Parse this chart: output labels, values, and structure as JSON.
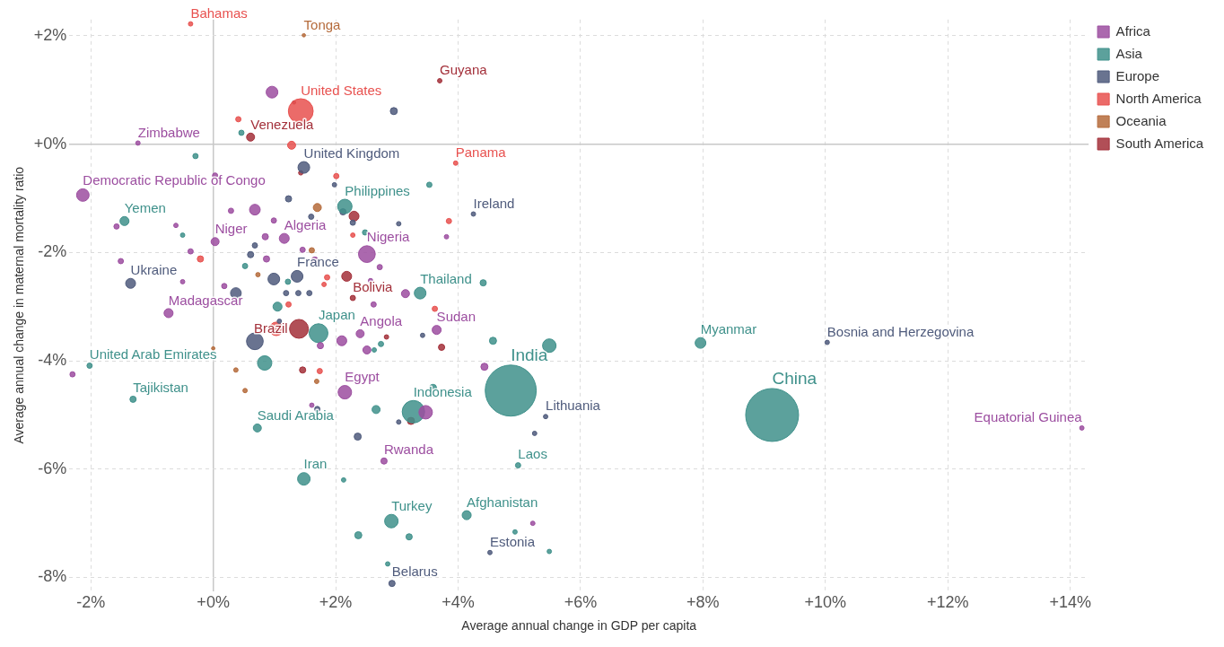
{
  "chart_data": {
    "type": "bubble",
    "xlabel": "Average annual change in GDP per capita",
    "ylabel": "Average annual change in maternal mortality ratio",
    "xlim": [
      -2.35,
      14.3
    ],
    "ylim": [
      -8.25,
      2.3
    ],
    "xticks": [
      {
        "value": -2,
        "label": "-2%"
      },
      {
        "value": 0,
        "label": "+0%"
      },
      {
        "value": 2,
        "label": "+2%"
      },
      {
        "value": 4,
        "label": "+4%"
      },
      {
        "value": 6,
        "label": "+6%"
      },
      {
        "value": 8,
        "label": "+8%"
      },
      {
        "value": 10,
        "label": "+10%"
      },
      {
        "value": 12,
        "label": "+12%"
      },
      {
        "value": 14,
        "label": "+14%"
      }
    ],
    "yticks": [
      {
        "value": -8,
        "label": "-8%"
      },
      {
        "value": -6,
        "label": "-6%"
      },
      {
        "value": -4,
        "label": "-4%"
      },
      {
        "value": -2,
        "label": "-2%"
      },
      {
        "value": 0,
        "label": "+0%"
      },
      {
        "value": 2,
        "label": "+2%"
      }
    ],
    "grid": true,
    "legend": "top right",
    "series": [
      {
        "name": "Africa",
        "color": "#9c4ea0",
        "x": [
          -1.23,
          -2.13,
          0.03,
          1.16,
          2.51,
          -0.73,
          2.4,
          3.65,
          2.15,
          2.79,
          14.19,
          0.96,
          0.03,
          0.68,
          0.29,
          3.81,
          0.99,
          -1.58,
          -0.61,
          0.85,
          -0.37,
          -1.51,
          0.87,
          1.46,
          1.66,
          2.72,
          2.57,
          -0.5,
          0.18,
          3.14,
          2.62,
          -2.3,
          2.1,
          2.51,
          1.75,
          4.43,
          1.61,
          3.47,
          5.22
        ],
        "values": [
          0.02,
          -0.94,
          -1.8,
          -1.74,
          -2.03,
          -3.12,
          -3.5,
          -3.43,
          -4.58,
          -5.85,
          -5.24,
          0.96,
          -0.58,
          -1.21,
          -1.23,
          -1.71,
          -1.41,
          -1.52,
          -1.5,
          -1.71,
          -1.98,
          -2.16,
          -2.12,
          -1.95,
          -2.14,
          -2.27,
          -2.52,
          -2.54,
          -2.62,
          -2.76,
          -2.96,
          -4.25,
          -3.63,
          -3.8,
          -3.72,
          -4.11,
          -4.82,
          -4.95,
          -7.0
        ],
        "sizes": [
          0.007,
          0.056,
          0.023,
          0.035,
          0.1,
          0.029,
          0.023,
          0.029,
          0.065,
          0.014,
          0.007,
          0.049,
          0.01,
          0.041,
          0.01,
          0.007,
          0.01,
          0.01,
          0.007,
          0.014,
          0.01,
          0.01,
          0.014,
          0.01,
          0.014,
          0.01,
          0.007,
          0.007,
          0.01,
          0.023,
          0.01,
          0.01,
          0.035,
          0.023,
          0.014,
          0.018,
          0.007,
          0.065,
          0.007
        ],
        "value_labels": [
          "Zimbabwe",
          "Democratic Republic of Congo",
          "Niger",
          "Algeria",
          "Nigeria",
          "Madagascar",
          "Angola",
          "Sudan",
          "Egypt",
          "Rwanda",
          "Equatorial Guinea",
          null,
          null,
          null,
          null,
          null,
          null,
          null,
          null,
          null,
          null,
          null,
          null,
          null,
          null,
          null,
          null,
          null,
          null,
          null,
          null,
          null,
          null,
          null,
          null,
          null,
          null,
          null,
          null
        ]
      },
      {
        "name": "Asia",
        "color": "#3f918b",
        "x": [
          2.15,
          -1.45,
          3.38,
          1.72,
          -2.02,
          -1.31,
          3.27,
          0.72,
          1.48,
          2.91,
          4.14,
          4.86,
          4.98,
          7.96,
          9.13,
          0.46,
          -0.29,
          3.53,
          -0.5,
          2.48,
          0.52,
          1.22,
          4.41,
          1.05,
          0.84,
          2.63,
          2.74,
          4.57,
          3.59,
          2.66,
          2.13,
          2.37,
          3.2,
          2.85,
          5.49,
          4.93,
          5.49
        ],
        "values": [
          -1.15,
          -1.42,
          -2.75,
          -3.49,
          -4.09,
          -4.71,
          -4.94,
          -5.24,
          -6.18,
          -6.96,
          -6.85,
          -4.55,
          -5.93,
          -3.67,
          -5.0,
          0.21,
          -0.22,
          -0.75,
          -1.68,
          -1.63,
          -2.25,
          -2.54,
          -2.56,
          -3.0,
          -4.04,
          -3.8,
          -3.69,
          -3.63,
          -4.5,
          -4.9,
          -6.2,
          -7.22,
          -7.25,
          -7.75,
          -3.72,
          -7.16,
          -7.52
        ],
        "sizes": [
          0.074,
          0.029,
          0.049,
          0.127,
          0.01,
          0.014,
          0.18,
          0.023,
          0.056,
          0.065,
          0.029,
          0.93,
          0.01,
          0.041,
          1,
          0.01,
          0.01,
          0.01,
          0.007,
          0.01,
          0.01,
          0.01,
          0.014,
          0.029,
          0.074,
          0.007,
          0.01,
          0.018,
          0.018,
          0.023,
          0.007,
          0.018,
          0.014,
          0.007,
          0.065,
          0.007,
          0.007
        ],
        "value_labels": [
          "Philippines",
          "Yemen",
          "Thailand",
          "Japan",
          "United Arab Emirates",
          "Tajikistan",
          "Indonesia",
          "Saudi Arabia",
          "Iran",
          "Turkey",
          "Afghanistan",
          "India",
          "Laos",
          "Myanmar",
          "China",
          null,
          null,
          null,
          null,
          null,
          null,
          null,
          null,
          null,
          null,
          null,
          null,
          null,
          null,
          null,
          null,
          null,
          null,
          null,
          null,
          null,
          null
        ]
      },
      {
        "name": "Europe",
        "color": "#4f5b7c",
        "x": [
          1.48,
          4.25,
          -1.35,
          1.37,
          4.52,
          2.92,
          5.43,
          10.03,
          2.95,
          1.98,
          1.23,
          1.6,
          2.12,
          2.28,
          3.03,
          0.61,
          0.68,
          0.99,
          0.37,
          1.19,
          1.39,
          1.57,
          0.68,
          1.08,
          3.42,
          1.7,
          3.03,
          2.36,
          5.25
        ],
        "values": [
          -0.43,
          -1.29,
          -2.57,
          -2.44,
          -7.54,
          -8.11,
          -5.03,
          -3.66,
          0.61,
          -0.75,
          -1.01,
          -1.34,
          -1.25,
          -1.45,
          -1.47,
          -2.04,
          -1.87,
          -2.49,
          -2.75,
          -2.75,
          -2.75,
          -2.75,
          -3.64,
          -3.27,
          -3.53,
          -4.89,
          -5.13,
          -5.4,
          -5.34
        ],
        "sizes": [
          0.049,
          0.007,
          0.035,
          0.049,
          0.007,
          0.014,
          0.007,
          0.007,
          0.018,
          0.007,
          0.014,
          0.01,
          0.014,
          0.01,
          0.007,
          0.014,
          0.01,
          0.049,
          0.041,
          0.01,
          0.01,
          0.01,
          0.1,
          0.007,
          0.007,
          0.01,
          0.007,
          0.018,
          0.007
        ],
        "value_labels": [
          "United Kingdom",
          "Ireland",
          "Ukraine",
          "France",
          "Estonia",
          "Belarus",
          "Lithuania",
          "Bosnia and Herzegovina",
          null,
          null,
          null,
          null,
          null,
          null,
          null,
          null,
          null,
          null,
          null,
          null,
          null,
          null,
          null,
          null,
          null,
          null,
          null,
          null,
          null
        ]
      },
      {
        "name": "North America",
        "color": "#e8514f",
        "x": [
          -0.37,
          1.43,
          3.96,
          0.41,
          1.28,
          2.01,
          3.85,
          2.28,
          -0.21,
          1.86,
          1.81,
          1.23,
          3.62,
          1.03,
          1.74
        ],
        "values": [
          2.22,
          0.61,
          -0.35,
          0.46,
          -0.02,
          -0.59,
          -1.42,
          -1.68,
          -2.12,
          -2.46,
          -2.59,
          -2.96,
          -3.04,
          -3.41,
          -4.19
        ],
        "sizes": [
          0.007,
          0.22,
          0.007,
          0.01,
          0.023,
          0.01,
          0.01,
          0.007,
          0.014,
          0.01,
          0.007,
          0.01,
          0.01,
          0.065,
          0.01
        ],
        "value_labels": [
          "Bahamas",
          "United States",
          "Panama",
          null,
          null,
          null,
          null,
          null,
          null,
          null,
          null,
          null,
          null,
          null,
          null
        ]
      },
      {
        "name": "Oceania",
        "color": "#b56b3b",
        "x": [
          1.48,
          1.7,
          1.61,
          0.73,
          0.37,
          0.52,
          1.69,
          0.0
        ],
        "values": [
          2.01,
          -1.17,
          -1.96,
          -2.41,
          -4.17,
          -4.55,
          -4.38,
          -3.77
        ],
        "sizes": [
          0.004,
          0.023,
          0.01,
          0.007,
          0.007,
          0.007,
          0.007,
          0.004
        ],
        "value_labels": [
          "Tonga",
          null,
          null,
          null,
          null,
          null,
          null,
          null
        ]
      },
      {
        "name": "South America",
        "color": "#a3303a",
        "x": [
          3.7,
          0.61,
          2.28,
          1.4,
          1.32,
          1.43,
          2.3,
          2.18,
          2.83,
          3.73,
          1.46,
          3.23
        ],
        "values": [
          1.17,
          0.13,
          -2.84,
          -3.41,
          0.77,
          -0.53,
          -1.33,
          -2.44,
          -3.56,
          -3.75,
          -4.17,
          -5.11
        ],
        "sizes": [
          0.007,
          0.023,
          0.01,
          0.127,
          0.004,
          0.007,
          0.035,
          0.035,
          0.007,
          0.014,
          0.014,
          0.018
        ],
        "value_labels": [
          "Guyana",
          "Venezuela",
          "Bolivia",
          "Brazil",
          null,
          null,
          null,
          null,
          null,
          null,
          null,
          null
        ]
      }
    ]
  }
}
